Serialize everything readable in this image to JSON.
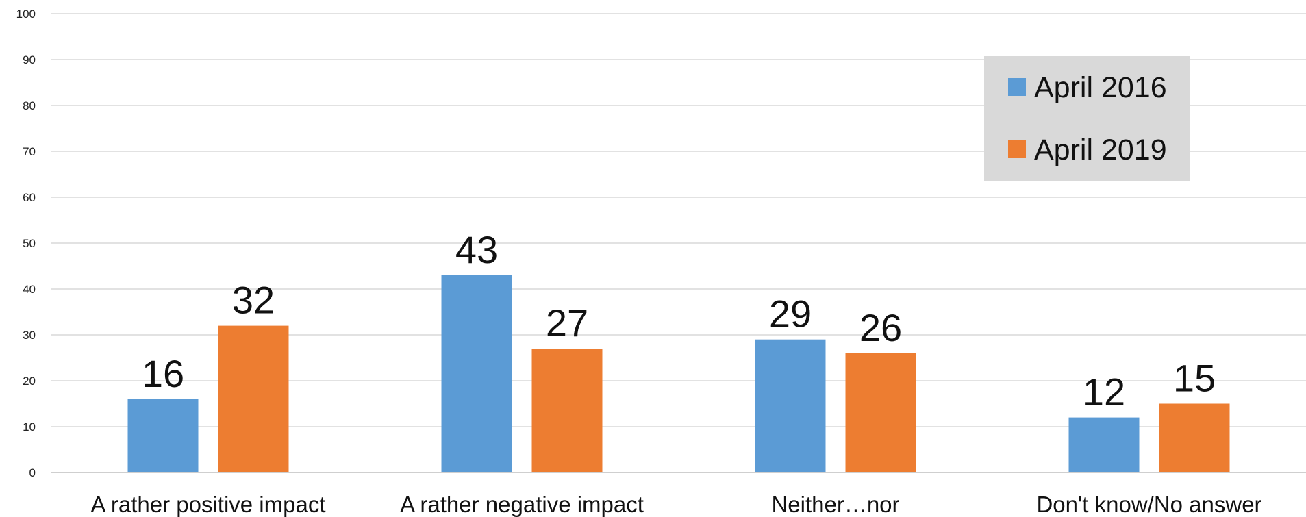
{
  "chart_data": {
    "type": "bar",
    "categories": [
      "A rather positive impact",
      "A rather negative impact",
      "Neither…nor",
      "Don't know/No answer"
    ],
    "series": [
      {
        "name": "April 2016",
        "color": "#5b9bd5",
        "values": [
          16,
          43,
          29,
          12
        ]
      },
      {
        "name": "April 2019",
        "color": "#ed7d31",
        "values": [
          32,
          27,
          26,
          15
        ]
      }
    ],
    "ylim": [
      0,
      100
    ],
    "yticks": [
      0,
      10,
      20,
      30,
      40,
      50,
      60,
      70,
      80,
      90,
      100
    ],
    "grid": true,
    "data_labels": true,
    "legend_position": "top-right",
    "legend_background": "#d9d9d9"
  }
}
